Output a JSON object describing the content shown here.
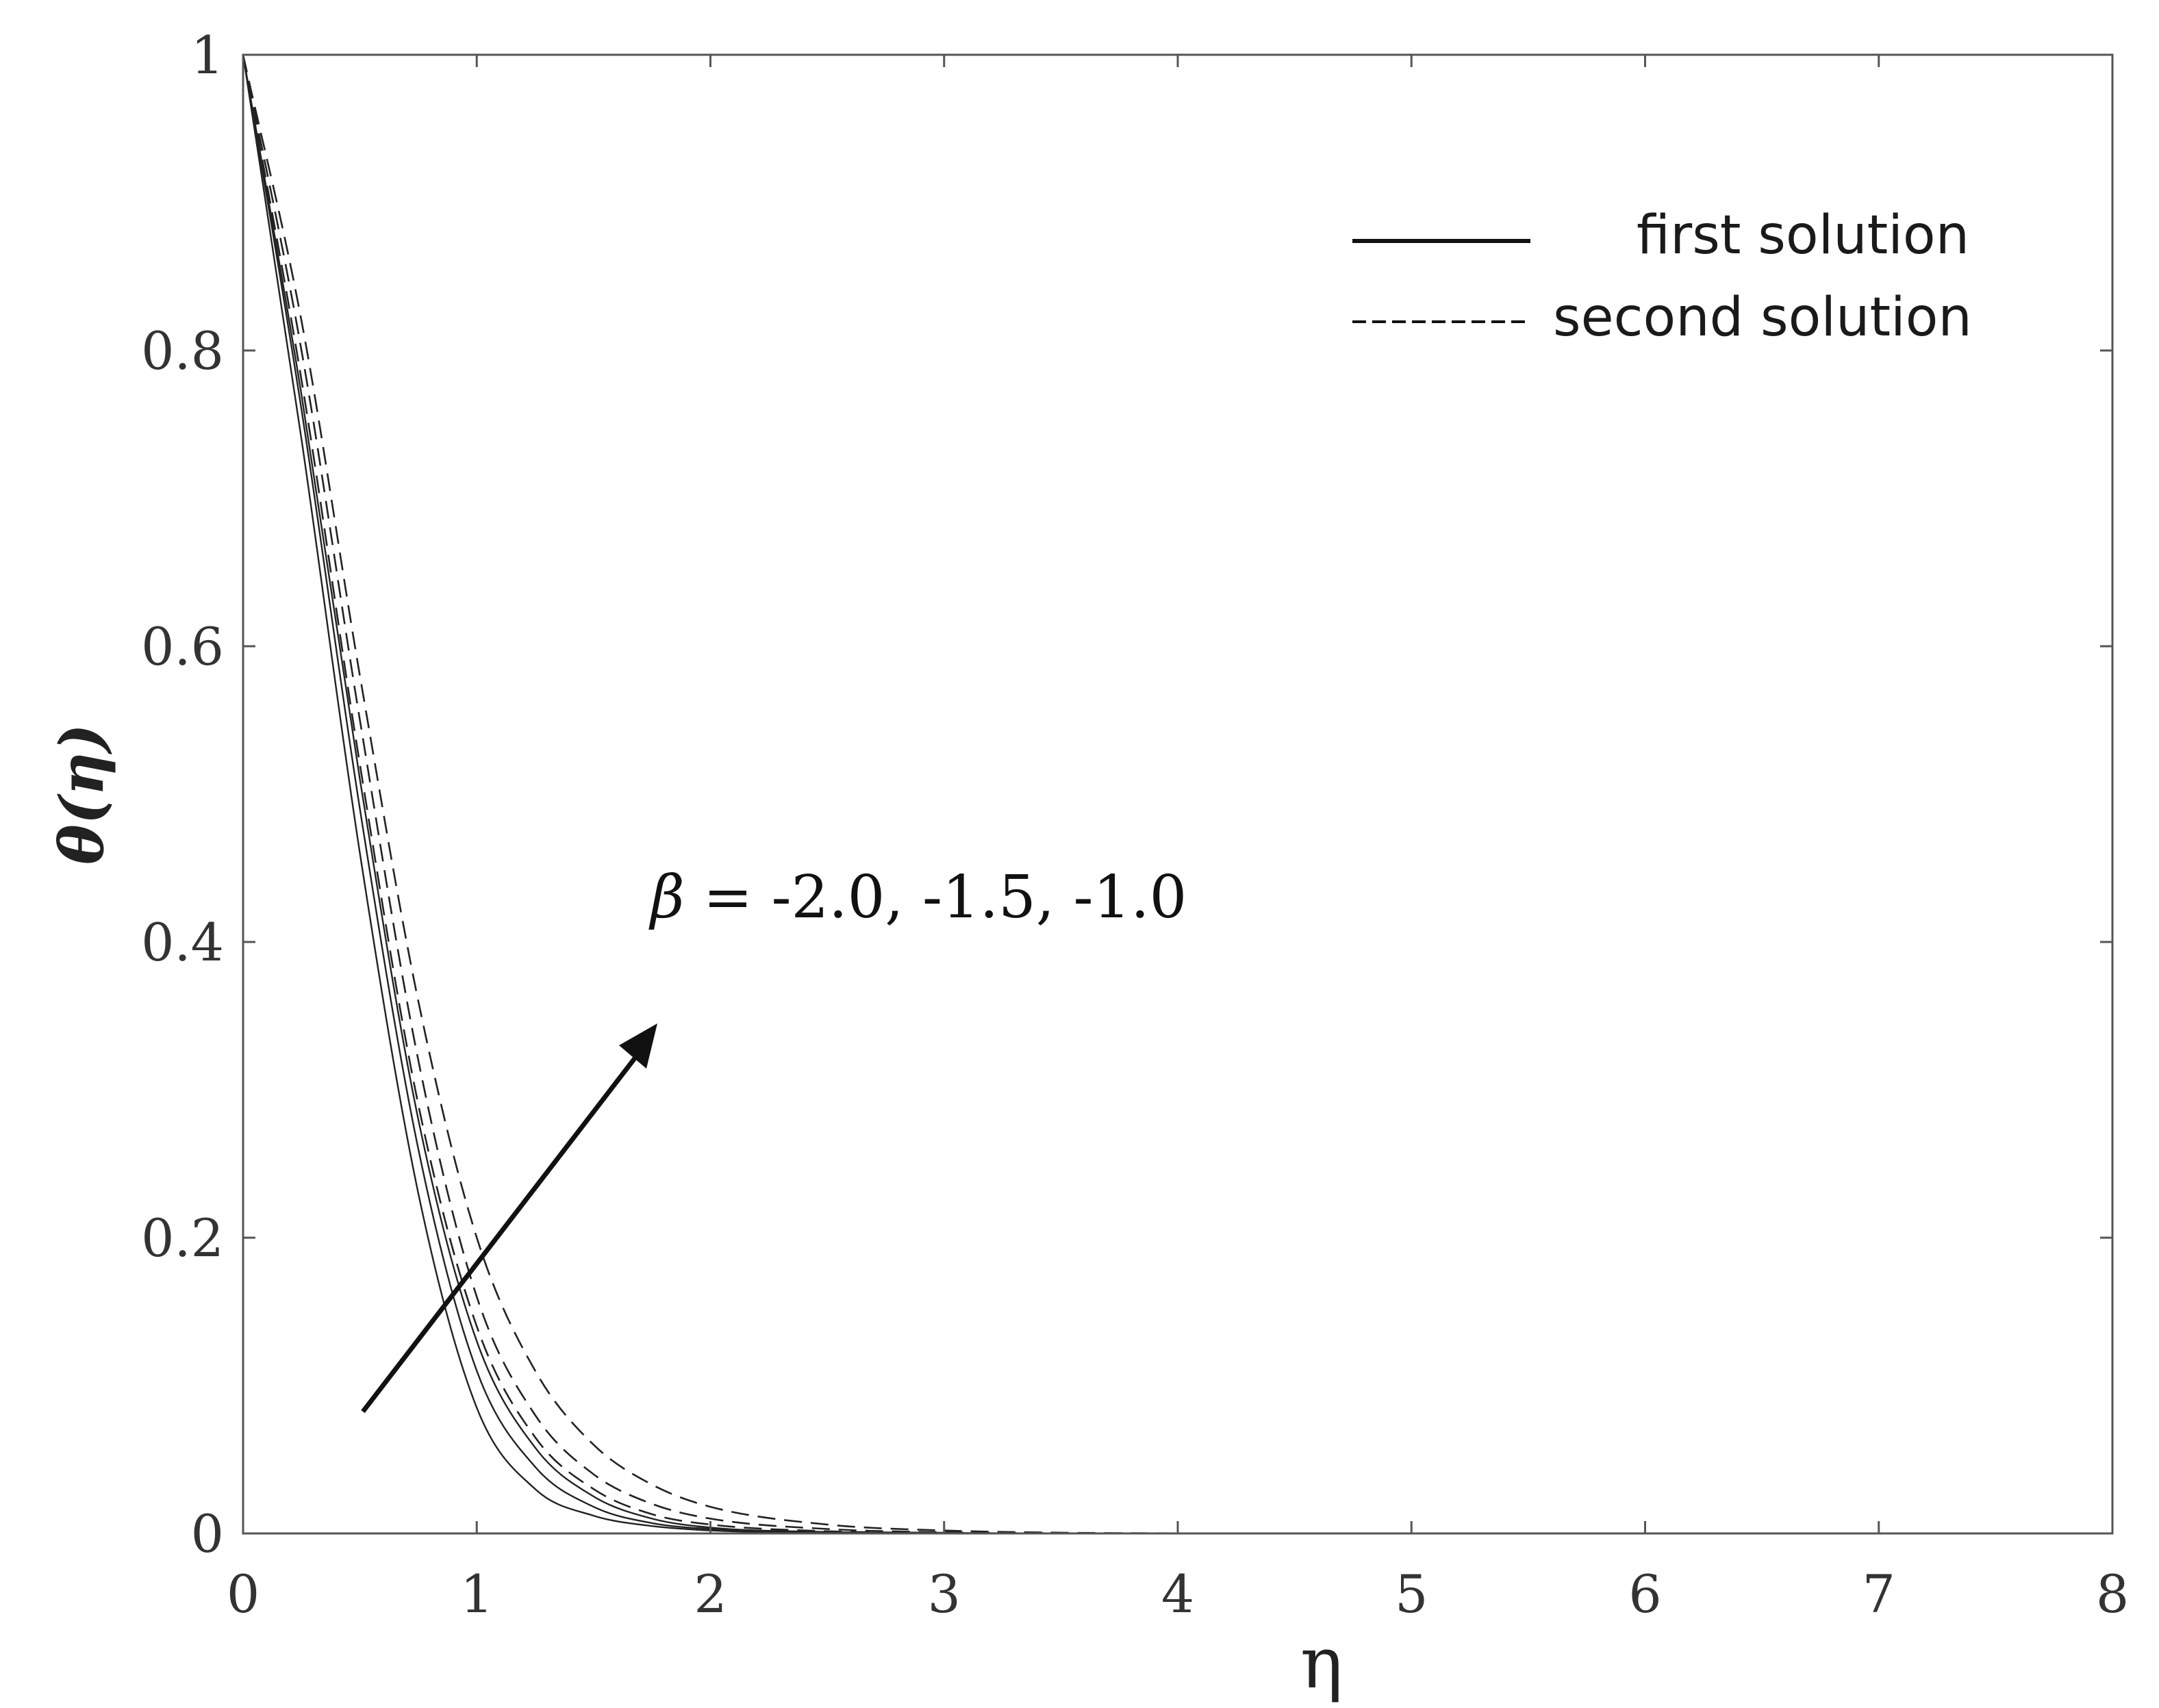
{
  "chart_data": {
    "type": "line",
    "xlabel": "η",
    "ylabel": "θ(η)",
    "xlim": [
      0,
      8
    ],
    "ylim": [
      0,
      1
    ],
    "x_ticks": [
      "0",
      "1",
      "2",
      "3",
      "4",
      "5",
      "6",
      "7",
      "8"
    ],
    "y_ticks": [
      "0",
      "0.2",
      "0.4",
      "0.6",
      "0.8",
      "1"
    ],
    "grid": false,
    "legend_position": "top-right",
    "legend": [
      {
        "label": "first solution",
        "style": "solid"
      },
      {
        "label": "second solution",
        "style": "dashed"
      }
    ],
    "annotation": {
      "symbol": "β",
      "text": " = -2.0, -1.5, -1.0"
    },
    "x": [
      0,
      0.25,
      0.5,
      0.75,
      1.0,
      1.25,
      1.5,
      1.75,
      2.0,
      2.5,
      3.0,
      3.5,
      4.0,
      5.0,
      6.0,
      7.0,
      8.0
    ],
    "series": [
      {
        "style": "solid",
        "values": [
          1.0,
          0.74,
          0.46,
          0.23,
          0.085,
          0.03,
          0.012,
          0.005,
          0.002,
          0.0005,
          0.0001,
          0,
          0,
          0,
          0,
          0,
          0
        ]
      },
      {
        "style": "solid",
        "values": [
          1.0,
          0.76,
          0.49,
          0.26,
          0.11,
          0.045,
          0.018,
          0.007,
          0.003,
          0.0008,
          0.0002,
          0,
          0,
          0,
          0,
          0,
          0
        ]
      },
      {
        "style": "solid",
        "values": [
          1.0,
          0.77,
          0.51,
          0.28,
          0.13,
          0.058,
          0.025,
          0.01,
          0.004,
          0.001,
          0.0002,
          0,
          0,
          0,
          0,
          0,
          0
        ]
      },
      {
        "style": "dashed",
        "values": [
          1.0,
          0.78,
          0.52,
          0.29,
          0.14,
          0.065,
          0.03,
          0.013,
          0.006,
          0.0015,
          0.0004,
          0,
          0,
          0,
          0,
          0,
          0
        ]
      },
      {
        "style": "dashed",
        "values": [
          1.0,
          0.8,
          0.55,
          0.32,
          0.16,
          0.08,
          0.04,
          0.02,
          0.01,
          0.003,
          0.0008,
          0.0002,
          0,
          0,
          0,
          0,
          0
        ]
      },
      {
        "style": "dashed",
        "values": [
          1.0,
          0.82,
          0.58,
          0.36,
          0.2,
          0.11,
          0.06,
          0.033,
          0.018,
          0.006,
          0.002,
          0.0005,
          0.0001,
          0,
          0,
          0,
          0
        ]
      }
    ]
  }
}
